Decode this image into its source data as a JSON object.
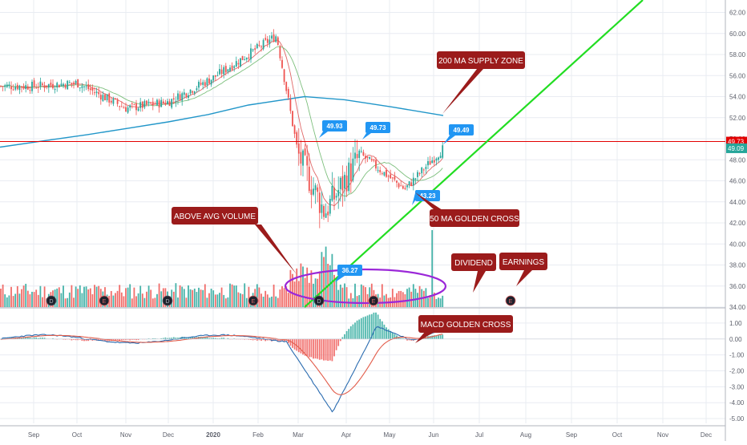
{
  "colors": {
    "up": "#26a69a",
    "down": "#ef5350",
    "grid": "#e9ecf2",
    "ma_blue": "#2196c9",
    "ma_red": "#e06666",
    "ma_green": "#7dbf7d",
    "trendline": "#22dd22",
    "callout_bg": "#9b1b1b",
    "label_bg": "#2196f3",
    "resistance": "#e30000",
    "ellipse": "#9b27d8",
    "macd": "#2b6cb0",
    "signal": "#e25c4a",
    "current_tag": "#26a69a"
  },
  "chart_data": [
    {
      "type": "candlestick",
      "title": "",
      "x_ticks": [
        "Sep",
        "Oct",
        "Nov",
        "Dec",
        "2020",
        "Feb",
        "Mar",
        "Apr",
        "May",
        "Jun",
        "Jul",
        "Aug",
        "Sep",
        "Oct",
        "Nov",
        "Dec"
      ],
      "y_ticks": [
        "62.00",
        "60.00",
        "58.00",
        "56.00",
        "54.00",
        "52.00",
        "50.00",
        "48.00",
        "46.00",
        "44.00",
        "42.00",
        "40.00",
        "38.00",
        "36.00",
        "34.00"
      ],
      "ylim": [
        34,
        62.8
      ],
      "price_labels": [
        {
          "text": "49.93",
          "value": 49.93
        },
        {
          "text": "49.73",
          "value": 49.73
        },
        {
          "text": "49.49",
          "value": 49.49
        },
        {
          "text": "43.23",
          "value": 43.23
        },
        {
          "text": "36.27",
          "value": 36.27
        }
      ],
      "right_axis_tags": [
        {
          "text": "49.73",
          "value": 49.73,
          "kind": "resistance"
        },
        {
          "text": "49.09",
          "value": 49.09,
          "kind": "last-price"
        }
      ],
      "resistance_level": 49.73,
      "trendline": [
        {
          "date": "Mar",
          "value": 34.0
        },
        {
          "date": "Oct",
          "value": 63.0
        }
      ],
      "series": [
        {
          "name": "",
          "kind": "moving-average",
          "values": [
            49.2,
            49.8,
            50.4,
            51.0,
            51.6,
            52.3,
            53.2,
            54.0,
            53.7,
            53.0,
            52.2
          ]
        },
        {
          "name": "",
          "kind": "candles",
          "close_points": [
            {
              "month": "Sep",
              "value": 55.0
            },
            {
              "month": "Oct",
              "value": 55.3
            },
            {
              "month": "Nov",
              "value": 52.9
            },
            {
              "month": "Dec",
              "value": 53.5
            },
            {
              "month": "2020",
              "value": 55.8
            },
            {
              "month": "Feb",
              "value": 59.8
            },
            {
              "month": "Mar",
              "value": 48.5
            },
            {
              "month": "Mar-late",
              "value": 43.0
            },
            {
              "month": "Apr",
              "value": 48.5
            },
            {
              "month": "May",
              "value": 45.2
            },
            {
              "month": "Jun",
              "value": 49.09
            }
          ]
        }
      ]
    },
    {
      "type": "bar",
      "title": "",
      "values_description": "",
      "volume_ellipse": true
    },
    {
      "type": "macd",
      "title": "",
      "y_ticks": [
        "1.00",
        "0.00",
        "-1.00",
        "-2.00",
        "-3.00",
        "-4.00",
        "-5.00"
      ],
      "ylim": [
        -5.3,
        1.5
      ]
    }
  ],
  "callouts": {
    "supply_zone": "200 MA SUPPLY ZONE",
    "above_avg_volume": "ABOVE AVG VOLUME",
    "golden_cross_50": "50 MA GOLDEN CROSS",
    "dividend": "DIVIDEND",
    "earnings": "EARNINGS",
    "macd_golden_cross": "MACD GOLDEN CROSS"
  },
  "event_markers": [
    {
      "letter": "D",
      "kind": "dividend"
    },
    {
      "letter": "E",
      "kind": "earnings"
    },
    {
      "letter": "D",
      "kind": "dividend"
    },
    {
      "letter": "E",
      "kind": "earnings"
    },
    {
      "letter": "D",
      "kind": "dividend"
    },
    {
      "letter": "E",
      "kind": "earnings"
    },
    {
      "letter": "E",
      "kind": "earnings"
    }
  ]
}
